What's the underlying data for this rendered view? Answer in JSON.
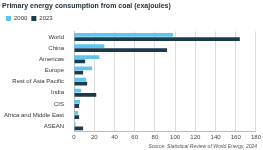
{
  "chart_data": {
    "type": "bar",
    "title": "Primary energy consumption from coal (exajoules)",
    "source": "Source: Statistical Review of World Energy, 2024",
    "orientation": "horizontal",
    "categories": [
      "World",
      "China",
      "Americas",
      "Europe",
      "Rest of Asia Pacific",
      "India",
      "CIS",
      "Africa and Middle East",
      "ASEAN"
    ],
    "series": [
      {
        "name": "2000",
        "color": "#5cc6ee",
        "values": [
          98,
          30,
          25,
          18,
          12,
          7,
          6,
          4,
          1.5
        ]
      },
      {
        "name": "2023",
        "color": "#1c3a4e",
        "values": [
          164,
          92,
          11,
          9,
          13,
          22,
          5,
          5,
          9
        ]
      }
    ],
    "xlim": [
      0,
      180
    ],
    "xticks": [
      0,
      20,
      40,
      60,
      80,
      100,
      120,
      140,
      160,
      180
    ],
    "grid": true,
    "legend": "top-left"
  }
}
